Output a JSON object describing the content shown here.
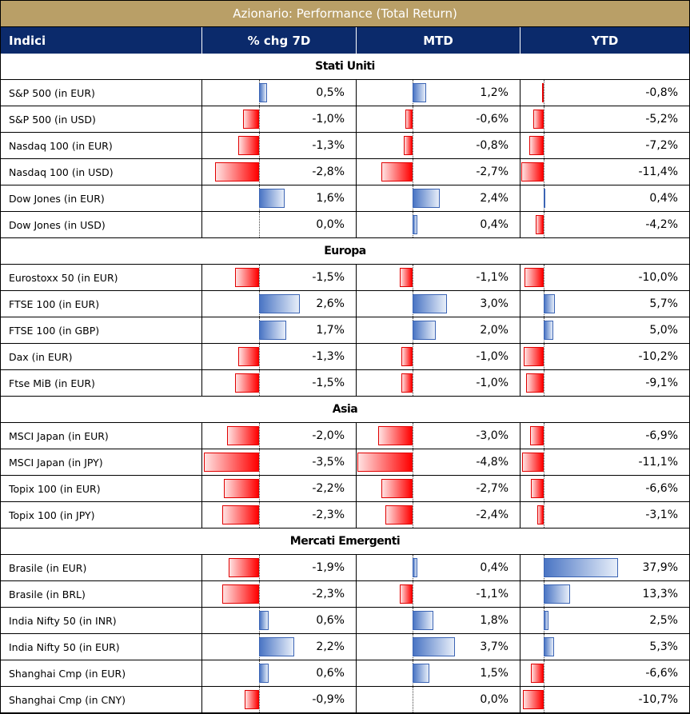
{
  "title": "Azionario: Performance (Total Return)",
  "headers": {
    "name": "Indici",
    "chg7d": "% chg 7D",
    "mtd": "MTD",
    "ytd": "YTD"
  },
  "colors": {
    "header_bg": "#0b2a6b",
    "title_bg": "#b99f67",
    "positive": "#4a75c4",
    "negative": "#ff0000"
  },
  "chart_data": {
    "type": "table",
    "title": "Azionario: Performance (Total Return)",
    "columns": [
      "% chg 7D",
      "MTD",
      "YTD"
    ],
    "sections": [
      {
        "name": "Stati Uniti",
        "rows": [
          {
            "label": "S&P 500 (in EUR)",
            "chg7d": "0,5%",
            "mtd": "1,2%",
            "ytd": "-0,8%",
            "v": [
              0.5,
              1.2,
              -0.8
            ]
          },
          {
            "label": "S&P 500 (in USD)",
            "chg7d": "-1,0%",
            "mtd": "-0,6%",
            "ytd": "-5,2%",
            "v": [
              -1.0,
              -0.6,
              -5.2
            ]
          },
          {
            "label": "Nasdaq 100 (in EUR)",
            "chg7d": "-1,3%",
            "mtd": "-0,8%",
            "ytd": "-7,2%",
            "v": [
              -1.3,
              -0.8,
              -7.2
            ]
          },
          {
            "label": "Nasdaq 100 (in USD)",
            "chg7d": "-2,8%",
            "mtd": "-2,7%",
            "ytd": "-11,4%",
            "v": [
              -2.8,
              -2.7,
              -11.4
            ]
          },
          {
            "label": "Dow Jones (in EUR)",
            "chg7d": "1,6%",
            "mtd": "2,4%",
            "ytd": "0,4%",
            "v": [
              1.6,
              2.4,
              0.4
            ]
          },
          {
            "label": "Dow Jones (in USD)",
            "chg7d": "0,0%",
            "mtd": "0,4%",
            "ytd": "-4,2%",
            "v": [
              0.0,
              0.4,
              -4.2
            ]
          }
        ]
      },
      {
        "name": "Europa",
        "rows": [
          {
            "label": "Eurostoxx 50 (in EUR)",
            "chg7d": "-1,5%",
            "mtd": "-1,1%",
            "ytd": "-10,0%",
            "v": [
              -1.5,
              -1.1,
              -10.0
            ]
          },
          {
            "label": "FTSE 100 (in EUR)",
            "chg7d": "2,6%",
            "mtd": "3,0%",
            "ytd": "5,7%",
            "v": [
              2.6,
              3.0,
              5.7
            ]
          },
          {
            "label": "FTSE 100 (in GBP)",
            "chg7d": "1,7%",
            "mtd": "2,0%",
            "ytd": "5,0%",
            "v": [
              1.7,
              2.0,
              5.0
            ]
          },
          {
            "label": "Dax (in EUR)",
            "chg7d": "-1,3%",
            "mtd": "-1,0%",
            "ytd": "-10,2%",
            "v": [
              -1.3,
              -1.0,
              -10.2
            ]
          },
          {
            "label": "Ftse MiB (in EUR)",
            "chg7d": "-1,5%",
            "mtd": "-1,0%",
            "ytd": "-9,1%",
            "v": [
              -1.5,
              -1.0,
              -9.1
            ]
          }
        ]
      },
      {
        "name": "Asia",
        "rows": [
          {
            "label": "MSCI Japan (in EUR)",
            "chg7d": "-2,0%",
            "mtd": "-3,0%",
            "ytd": "-6,9%",
            "v": [
              -2.0,
              -3.0,
              -6.9
            ]
          },
          {
            "label": "MSCI Japan (in JPY)",
            "chg7d": "-3,5%",
            "mtd": "-4,8%",
            "ytd": "-11,1%",
            "v": [
              -3.5,
              -4.8,
              -11.1
            ]
          },
          {
            "label": "Topix 100 (in EUR)",
            "chg7d": "-2,2%",
            "mtd": "-2,7%",
            "ytd": "-6,6%",
            "v": [
              -2.2,
              -2.7,
              -6.6
            ]
          },
          {
            "label": "Topix 100 (in JPY)",
            "chg7d": "-2,3%",
            "mtd": "-2,4%",
            "ytd": "-3,1%",
            "v": [
              -2.3,
              -2.4,
              -3.1
            ]
          }
        ]
      },
      {
        "name": "Mercati Emergenti",
        "rows": [
          {
            "label": "Brasile (in EUR)",
            "chg7d": "-1,9%",
            "mtd": "0,4%",
            "ytd": "37,9%",
            "v": [
              -1.9,
              0.4,
              37.9
            ]
          },
          {
            "label": "Brasile (in BRL)",
            "chg7d": "-2,3%",
            "mtd": "-1,1%",
            "ytd": "13,3%",
            "v": [
              -2.3,
              -1.1,
              13.3
            ]
          },
          {
            "label": "India Nifty 50 (in INR)",
            "chg7d": "0,6%",
            "mtd": "1,8%",
            "ytd": "2,5%",
            "v": [
              0.6,
              1.8,
              2.5
            ]
          },
          {
            "label": "India Nifty 50 (in EUR)",
            "chg7d": "2,2%",
            "mtd": "3,7%",
            "ytd": "5,3%",
            "v": [
              2.2,
              3.7,
              5.3
            ]
          },
          {
            "label": "Shanghai Cmp (in EUR)",
            "chg7d": "0,6%",
            "mtd": "1,5%",
            "ytd": "-6,6%",
            "v": [
              0.6,
              1.5,
              -6.6
            ]
          },
          {
            "label": "Shanghai Cmp (in CNY)",
            "chg7d": "-0,9%",
            "mtd": "0,0%",
            "ytd": "-10,7%",
            "v": [
              -0.9,
              0.0,
              -10.7
            ]
          }
        ]
      }
    ]
  }
}
